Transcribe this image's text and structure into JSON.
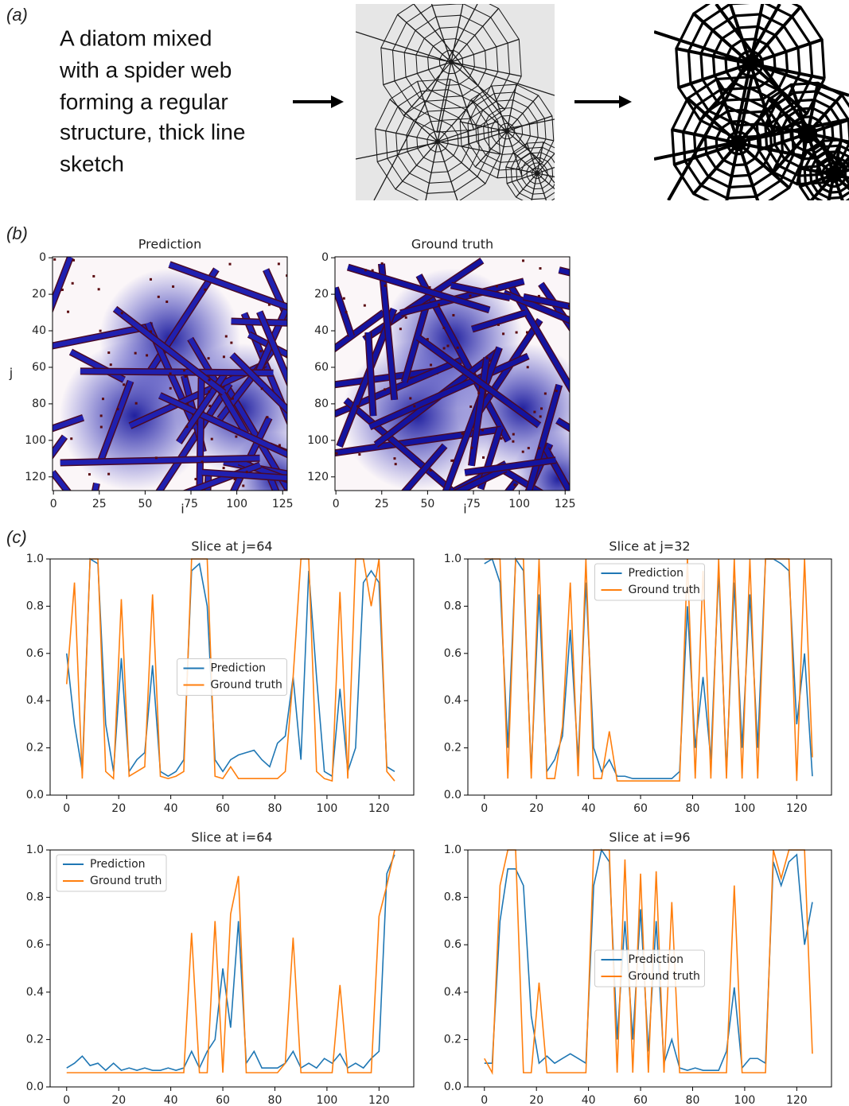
{
  "panels": {
    "a": {
      "label": "(a)",
      "text": [
        "A diatom mixed",
        "with a spider web",
        "forming a regular",
        "structure, thick line",
        "sketch"
      ]
    },
    "b": {
      "label": "(b)"
    },
    "c": {
      "label": "(c)"
    }
  },
  "chart_data": [
    {
      "type": "image",
      "title": "Prediction",
      "xlabel": "i",
      "ylabel": "j",
      "xlim": [
        -0.5,
        127.5
      ],
      "ylim": [
        127.5,
        -0.5
      ],
      "xticks": [
        0,
        25,
        50,
        75,
        100,
        125
      ],
      "yticks": [
        0,
        20,
        40,
        60,
        80,
        100,
        120
      ]
    },
    {
      "type": "image",
      "title": "Ground truth",
      "xlabel": "i",
      "xlim": [
        -0.5,
        127.5
      ],
      "ylim": [
        127.5,
        -0.5
      ],
      "xticks": [
        0,
        25,
        50,
        75,
        100,
        125
      ],
      "yticks": [
        0,
        20,
        40,
        60,
        80,
        100,
        120
      ]
    },
    {
      "type": "line",
      "title": "Slice at j=64",
      "legend": "center",
      "xlim": [
        -6.35,
        133.35
      ],
      "ylim": [
        0,
        1
      ],
      "xticks": [
        0,
        20,
        40,
        60,
        80,
        100,
        120
      ],
      "yticks": [
        {
          "value": 0,
          "label": "0.0"
        },
        0.2,
        0.4,
        0.6,
        0.8,
        {
          "value": 1,
          "label": "1.0"
        }
      ],
      "x": [
        0,
        3,
        6,
        9,
        12,
        15,
        18,
        21,
        24,
        27,
        30,
        33,
        36,
        39,
        42,
        45,
        48,
        51,
        54,
        57,
        60,
        63,
        66,
        69,
        72,
        75,
        78,
        81,
        84,
        87,
        90,
        93,
        96,
        99,
        102,
        105,
        108,
        111,
        114,
        117,
        120,
        123,
        126
      ],
      "series": [
        {
          "name": "Prediction",
          "color": "#1f77b4",
          "values": [
            0.6,
            0.3,
            0.1,
            1.0,
            0.98,
            0.3,
            0.1,
            0.58,
            0.1,
            0.15,
            0.18,
            0.55,
            0.1,
            0.08,
            0.1,
            0.15,
            0.95,
            0.98,
            0.8,
            0.15,
            0.1,
            0.15,
            0.17,
            0.18,
            0.19,
            0.15,
            0.12,
            0.22,
            0.25,
            0.5,
            0.15,
            0.95,
            0.5,
            0.1,
            0.08,
            0.45,
            0.1,
            0.2,
            0.9,
            0.95,
            0.9,
            0.12,
            0.1
          ]
        },
        {
          "name": "Ground truth",
          "color": "#ff7f0e",
          "values": [
            0.47,
            0.9,
            0.07,
            1.0,
            1.0,
            0.1,
            0.07,
            0.83,
            0.08,
            0.1,
            0.12,
            0.85,
            0.08,
            0.07,
            0.08,
            0.1,
            1.0,
            1.0,
            1.0,
            0.08,
            0.07,
            0.12,
            0.07,
            0.07,
            0.07,
            0.07,
            0.07,
            0.07,
            0.1,
            0.5,
            1.0,
            1.0,
            0.1,
            0.07,
            0.06,
            0.86,
            0.07,
            1.0,
            1.0,
            0.8,
            1.0,
            0.1,
            0.06
          ]
        }
      ]
    },
    {
      "type": "line",
      "title": "Slice at j=32",
      "legend": "upper center",
      "xlim": [
        -6.35,
        133.35
      ],
      "ylim": [
        0,
        1
      ],
      "xticks": [
        0,
        20,
        40,
        60,
        80,
        100,
        120
      ],
      "yticks": [
        {
          "value": 0,
          "label": "0.0"
        },
        0.2,
        0.4,
        0.6,
        0.8,
        {
          "value": 1,
          "label": "1.0"
        }
      ],
      "x": [
        0,
        3,
        6,
        9,
        12,
        15,
        18,
        21,
        24,
        27,
        30,
        33,
        36,
        39,
        42,
        45,
        48,
        51,
        54,
        57,
        60,
        63,
        66,
        69,
        72,
        75,
        78,
        81,
        84,
        87,
        90,
        93,
        96,
        99,
        102,
        105,
        108,
        111,
        114,
        117,
        120,
        123,
        126
      ],
      "series": [
        {
          "name": "Prediction",
          "color": "#1f77b4",
          "values": [
            0.98,
            1.0,
            0.9,
            0.2,
            1.0,
            0.95,
            0.1,
            0.85,
            0.1,
            0.15,
            0.25,
            0.7,
            0.15,
            0.9,
            0.2,
            0.1,
            0.15,
            0.08,
            0.08,
            0.07,
            0.07,
            0.07,
            0.07,
            0.07,
            0.07,
            0.1,
            0.8,
            0.2,
            0.5,
            0.15,
            0.95,
            0.1,
            0.9,
            0.2,
            0.85,
            0.2,
            1.0,
            1.0,
            0.98,
            0.95,
            0.3,
            0.6,
            0.08
          ]
        },
        {
          "name": "Ground truth",
          "color": "#ff7f0e",
          "values": [
            1.0,
            1.0,
            1.0,
            0.07,
            1.0,
            1.0,
            0.07,
            1.0,
            0.07,
            0.07,
            0.29,
            0.9,
            0.08,
            1.0,
            0.07,
            0.07,
            0.27,
            0.06,
            0.06,
            0.06,
            0.06,
            0.06,
            0.06,
            0.06,
            0.06,
            0.06,
            1.0,
            0.07,
            0.95,
            0.07,
            1.0,
            0.07,
            1.0,
            0.07,
            1.0,
            0.07,
            1.0,
            1.0,
            1.0,
            1.0,
            0.06,
            1.0,
            0.16
          ]
        }
      ]
    },
    {
      "type": "line",
      "title": "Slice at i=64",
      "legend": "upper left",
      "xlim": [
        -6.35,
        133.35
      ],
      "ylim": [
        0,
        1
      ],
      "xticks": [
        0,
        20,
        40,
        60,
        80,
        100,
        120
      ],
      "yticks": [
        {
          "value": 0,
          "label": "0.0"
        },
        0.2,
        0.4,
        0.6,
        0.8,
        {
          "value": 1,
          "label": "1.0"
        }
      ],
      "x": [
        0,
        3,
        6,
        9,
        12,
        15,
        18,
        21,
        24,
        27,
        30,
        33,
        36,
        39,
        42,
        45,
        48,
        51,
        54,
        57,
        60,
        63,
        66,
        69,
        72,
        75,
        78,
        81,
        84,
        87,
        90,
        93,
        96,
        99,
        102,
        105,
        108,
        111,
        114,
        117,
        120,
        123,
        126
      ],
      "series": [
        {
          "name": "Prediction",
          "color": "#1f77b4",
          "values": [
            0.08,
            0.1,
            0.13,
            0.09,
            0.1,
            0.07,
            0.1,
            0.07,
            0.08,
            0.07,
            0.08,
            0.07,
            0.07,
            0.08,
            0.07,
            0.08,
            0.15,
            0.08,
            0.15,
            0.2,
            0.5,
            0.25,
            0.7,
            0.1,
            0.15,
            0.08,
            0.08,
            0.08,
            0.1,
            0.15,
            0.08,
            0.1,
            0.08,
            0.12,
            0.1,
            0.14,
            0.08,
            0.1,
            0.08,
            0.12,
            0.15,
            0.9,
            0.98
          ]
        },
        {
          "name": "Ground truth",
          "color": "#ff7f0e",
          "values": [
            0.06,
            0.06,
            0.06,
            0.06,
            0.06,
            0.06,
            0.06,
            0.06,
            0.06,
            0.06,
            0.06,
            0.06,
            0.06,
            0.06,
            0.06,
            0.06,
            0.65,
            0.06,
            0.06,
            0.7,
            0.06,
            0.73,
            0.89,
            0.06,
            0.06,
            0.06,
            0.06,
            0.06,
            0.1,
            0.63,
            0.06,
            0.06,
            0.06,
            0.06,
            0.06,
            0.43,
            0.06,
            0.06,
            0.06,
            0.06,
            0.72,
            0.85,
            1.0
          ]
        }
      ]
    },
    {
      "type": "line",
      "title": "Slice at i=96",
      "legend": "center",
      "xlim": [
        -6.35,
        133.35
      ],
      "ylim": [
        0,
        1
      ],
      "xticks": [
        0,
        20,
        40,
        60,
        80,
        100,
        120
      ],
      "yticks": [
        {
          "value": 0,
          "label": "0.0"
        },
        0.2,
        0.4,
        0.6,
        0.8,
        {
          "value": 1,
          "label": "1.0"
        }
      ],
      "x": [
        0,
        3,
        6,
        9,
        12,
        15,
        18,
        21,
        24,
        27,
        30,
        33,
        36,
        39,
        42,
        45,
        48,
        51,
        54,
        57,
        60,
        63,
        66,
        69,
        72,
        75,
        78,
        81,
        84,
        87,
        90,
        93,
        96,
        99,
        102,
        105,
        108,
        111,
        114,
        117,
        120,
        123,
        126
      ],
      "series": [
        {
          "name": "Prediction",
          "color": "#1f77b4",
          "values": [
            0.1,
            0.1,
            0.7,
            0.92,
            0.92,
            0.85,
            0.3,
            0.1,
            0.13,
            0.1,
            0.12,
            0.14,
            0.12,
            0.1,
            0.85,
            1.0,
            0.95,
            0.2,
            0.7,
            0.2,
            0.75,
            0.15,
            0.7,
            0.1,
            0.2,
            0.08,
            0.07,
            0.08,
            0.07,
            0.07,
            0.07,
            0.15,
            0.42,
            0.08,
            0.12,
            0.12,
            0.1,
            0.95,
            0.85,
            0.95,
            0.98,
            0.6,
            0.78
          ]
        },
        {
          "name": "Ground truth",
          "color": "#ff7f0e",
          "values": [
            0.12,
            0.06,
            0.85,
            1.0,
            1.0,
            0.06,
            0.06,
            0.44,
            0.06,
            0.06,
            0.06,
            0.06,
            0.06,
            0.06,
            1.0,
            1.0,
            1.0,
            0.06,
            0.96,
            0.06,
            0.9,
            0.06,
            0.91,
            0.06,
            0.78,
            0.06,
            0.06,
            0.06,
            0.06,
            0.06,
            0.06,
            0.06,
            0.85,
            0.06,
            0.06,
            0.06,
            0.06,
            1.0,
            0.88,
            1.0,
            1.0,
            1.0,
            0.14
          ]
        }
      ]
    }
  ]
}
